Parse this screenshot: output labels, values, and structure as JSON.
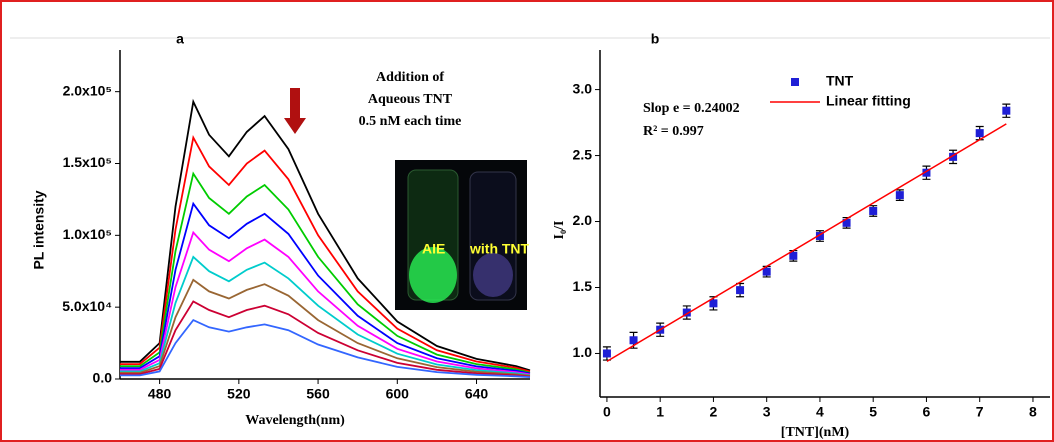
{
  "chart_data": [
    {
      "type": "line",
      "panel": "a",
      "y_label": "PL intensity",
      "x_label": "Wavelength(nm)",
      "annotation": [
        "Addition of",
        "Aqueous TNT",
        "0.5 nM each time"
      ],
      "inset_labels": [
        "AIE",
        "with TNT"
      ],
      "xlim": [
        460,
        667
      ],
      "xticks": [
        480,
        520,
        560,
        600,
        640
      ],
      "ylim": [
        0,
        229000
      ],
      "yticks": [
        {
          "value": 0,
          "label": "0.0"
        },
        {
          "value": 50000,
          "label": "5.0x10⁴"
        },
        {
          "value": 100000,
          "label": "1.0x10⁵"
        },
        {
          "value": 150000,
          "label": "1.5x10⁵"
        },
        {
          "value": 200000,
          "label": "2.0x10⁵"
        }
      ],
      "x": [
        460,
        470,
        480,
        488,
        497,
        505,
        515,
        524,
        533,
        545,
        560,
        580,
        600,
        620,
        640,
        660,
        667
      ],
      "series": [
        {
          "color": "#000000",
          "values": [
            12000,
            12000,
            25000,
            120000,
            193000,
            170000,
            155000,
            172000,
            183000,
            160000,
            115000,
            70000,
            40000,
            23000,
            14000,
            9000,
            6000
          ]
        },
        {
          "color": "#ff0000",
          "values": [
            10400,
            10400,
            21800,
            104000,
            168000,
            148000,
            135000,
            150000,
            159000,
            139000,
            100000,
            61000,
            35000,
            20000,
            12200,
            7800,
            5200
          ]
        },
        {
          "color": "#00cc00",
          "values": [
            8900,
            8900,
            18500,
            89000,
            143000,
            126000,
            115000,
            127000,
            135000,
            118000,
            85000,
            52000,
            30000,
            17000,
            10400,
            6700,
            4400
          ]
        },
        {
          "color": "#0000ff",
          "values": [
            7600,
            7600,
            15800,
            76000,
            122000,
            107000,
            98000,
            108000,
            115000,
            101000,
            72000,
            44000,
            25000,
            14500,
            8800,
            5700,
            3800
          ]
        },
        {
          "color": "#ff00ff",
          "values": [
            6400,
            6400,
            13300,
            64000,
            102000,
            90000,
            82000,
            91000,
            97000,
            85000,
            61000,
            37000,
            21000,
            12200,
            7400,
            4800,
            3200
          ]
        },
        {
          "color": "#00cccc",
          "values": [
            5300,
            5300,
            11000,
            53000,
            85000,
            75000,
            68000,
            76000,
            81000,
            70000,
            51000,
            31000,
            17600,
            10100,
            6200,
            4000,
            2600
          ]
        },
        {
          "color": "#996633",
          "values": [
            4300,
            4300,
            9000,
            43000,
            69000,
            61000,
            56000,
            62000,
            66000,
            58000,
            41000,
            25000,
            14400,
            8300,
            5000,
            3200,
            2200
          ]
        },
        {
          "color": "#cc0033",
          "values": [
            3400,
            3400,
            7000,
            34000,
            54000,
            48000,
            43000,
            48000,
            51000,
            45000,
            32000,
            20000,
            11200,
            6400,
            3900,
            2500,
            1700
          ]
        },
        {
          "color": "#3366ff",
          "values": [
            2500,
            2500,
            5300,
            25000,
            41000,
            36000,
            33000,
            36000,
            38000,
            34000,
            24000,
            15000,
            8400,
            4800,
            2900,
            1900,
            1300
          ]
        }
      ]
    },
    {
      "type": "scatter",
      "panel": "b",
      "y_label": "I₀/I",
      "x_label": "[TNT](nM)",
      "annotation": [
        "Slop e = 0.24002",
        "R² = 0.997"
      ],
      "xlim": [
        -0.13,
        8.32
      ],
      "xticks": [
        0,
        1,
        2,
        3,
        4,
        5,
        6,
        7,
        8
      ],
      "ylim": [
        0.67,
        3.3
      ],
      "yticks": [
        {
          "value": 1,
          "label": "1.0"
        },
        {
          "value": 1.5,
          "label": "1.5"
        },
        {
          "value": 2,
          "label": "2.0"
        },
        {
          "value": 2.5,
          "label": "2.5"
        },
        {
          "value": 3,
          "label": "3.0"
        }
      ],
      "series": [
        {
          "name": "TNT",
          "color": "#1f1fd6",
          "mode": "markers",
          "x": [
            0,
            0.5,
            1,
            1.5,
            2,
            2.5,
            3,
            3.5,
            4,
            4.5,
            5,
            5.5,
            6,
            6.5,
            7,
            7.5
          ],
          "values": [
            1.0,
            1.1,
            1.18,
            1.31,
            1.38,
            1.48,
            1.62,
            1.74,
            1.89,
            1.99,
            2.08,
            2.2,
            2.37,
            2.49,
            2.67,
            2.84
          ],
          "errors": [
            0.05,
            0.06,
            0.05,
            0.05,
            0.05,
            0.05,
            0.04,
            0.04,
            0.04,
            0.04,
            0.04,
            0.04,
            0.05,
            0.05,
            0.05,
            0.05
          ]
        },
        {
          "name": "Linear fitting",
          "color": "#ff0000",
          "mode": "line",
          "x": [
            0,
            7.5
          ],
          "values": [
            0.94,
            2.74
          ]
        }
      ]
    }
  ]
}
